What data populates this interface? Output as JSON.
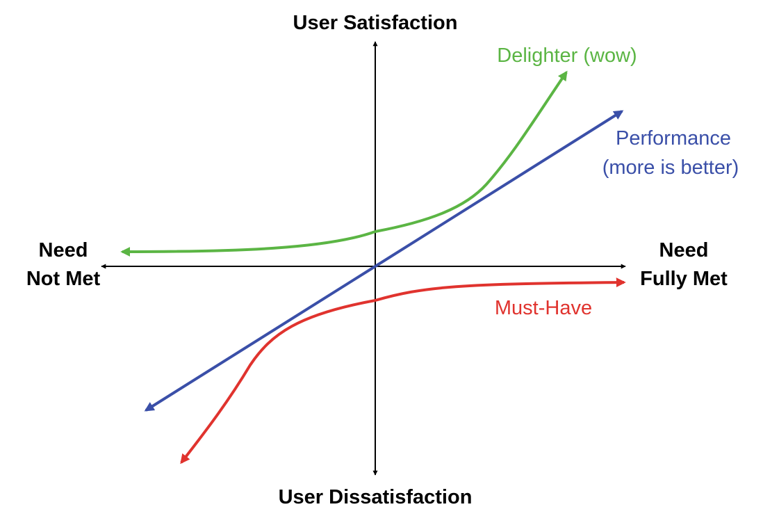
{
  "axes": {
    "top_label": "User Satisfaction",
    "bottom_label": "User Dissatisfaction",
    "left_label_line1": "Need",
    "left_label_line2": "Not Met",
    "right_label_line1": "Need",
    "right_label_line2": "Fully Met",
    "color": "#000000"
  },
  "curves": {
    "delighter": {
      "label": "Delighter (wow)",
      "color": "#5bb544"
    },
    "performance": {
      "label_line1": "Performance",
      "label_line2": "(more is better)",
      "color": "#3a4fa8"
    },
    "must_have": {
      "label": "Must-Have",
      "color": "#e0332e"
    }
  }
}
